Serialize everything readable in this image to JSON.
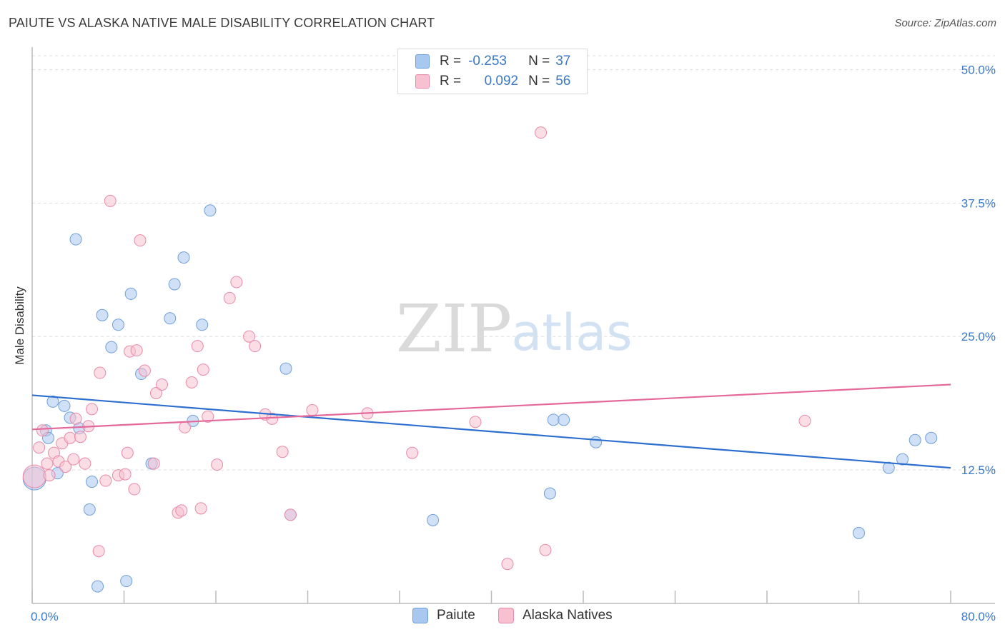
{
  "title": "PAIUTE VS ALASKA NATIVE MALE DISABILITY CORRELATION CHART",
  "source": "Source: ZipAtlas.com",
  "watermark": {
    "zip": "ZIP",
    "atlas": "atlas"
  },
  "legend": {
    "series1": {
      "r_label": "R =",
      "r_value": "-0.253",
      "n_label": "N =",
      "n_value": "37"
    },
    "series2": {
      "r_label": "R =",
      "r_value": "0.092",
      "n_label": "N =",
      "n_value": "56"
    }
  },
  "bottom_legend": {
    "series1": "Paiute",
    "series2": "Alaska Natives"
  },
  "colors": {
    "paiute_fill": "#a9c8f0",
    "paiute_stroke": "#6f9fd8",
    "paiute_line": "#2d6fce",
    "alaska_fill": "#f7c1d2",
    "alaska_stroke": "#e88aa8",
    "alaska_line": "#e4699a",
    "tick_label": "#3a78c8",
    "grid": "#dddddd"
  },
  "chart_data": {
    "type": "scatter",
    "title": "PAIUTE VS ALASKA NATIVE MALE DISABILITY CORRELATION CHART",
    "xlabel": "",
    "ylabel": "Male Disability",
    "xlim": [
      0,
      80
    ],
    "ylim": [
      0,
      51.5
    ],
    "x_tick_labels": [
      {
        "value": 0,
        "label": "0.0%"
      },
      {
        "value": 80,
        "label": "80.0%"
      }
    ],
    "y_tick_labels": [
      {
        "value": 12.5,
        "label": "12.5%"
      },
      {
        "value": 25.0,
        "label": "25.0%"
      },
      {
        "value": 37.5,
        "label": "37.5%"
      },
      {
        "value": 50.0,
        "label": "50.0%"
      }
    ],
    "grid": "horizontal dashed",
    "legend_position": "top-center",
    "series": [
      {
        "name": "Paiute",
        "r": -0.253,
        "n": 37,
        "trend": [
          [
            0,
            19.5
          ],
          [
            80,
            12.7
          ]
        ],
        "points": [
          [
            0.2,
            11.7,
            16
          ],
          [
            1.2,
            16.2,
            8
          ],
          [
            1.4,
            15.5,
            8
          ],
          [
            1.8,
            18.9,
            8
          ],
          [
            2.2,
            12.2,
            8
          ],
          [
            2.8,
            18.5,
            8
          ],
          [
            3.3,
            17.4,
            8
          ],
          [
            3.8,
            34.1,
            8
          ],
          [
            4.1,
            16.4,
            8
          ],
          [
            5.0,
            8.8,
            8
          ],
          [
            5.2,
            11.4,
            8
          ],
          [
            5.7,
            1.6,
            8
          ],
          [
            6.1,
            27.0,
            8
          ],
          [
            6.9,
            24.0,
            8
          ],
          [
            7.5,
            26.1,
            8
          ],
          [
            8.2,
            2.1,
            8
          ],
          [
            8.6,
            29.0,
            8
          ],
          [
            9.5,
            21.5,
            8
          ],
          [
            10.4,
            13.1,
            8
          ],
          [
            12.0,
            26.7,
            8
          ],
          [
            12.4,
            29.9,
            8
          ],
          [
            13.2,
            32.4,
            8
          ],
          [
            14.0,
            17.1,
            8
          ],
          [
            14.8,
            26.1,
            8
          ],
          [
            15.5,
            36.8,
            8
          ],
          [
            22.5,
            8.3,
            8
          ],
          [
            22.1,
            22.0,
            8
          ],
          [
            34.9,
            7.8,
            8
          ],
          [
            45.1,
            10.3,
            8
          ],
          [
            45.4,
            17.2,
            8
          ],
          [
            46.3,
            17.2,
            8
          ],
          [
            49.1,
            15.1,
            8
          ],
          [
            72.0,
            6.6,
            8
          ],
          [
            74.6,
            12.7,
            8
          ],
          [
            75.8,
            13.5,
            8
          ],
          [
            76.9,
            15.3,
            8
          ],
          [
            78.3,
            15.5,
            8
          ]
        ]
      },
      {
        "name": "Alaska Natives",
        "r": 0.092,
        "n": 56,
        "trend": [
          [
            0,
            16.3
          ],
          [
            80,
            20.5
          ]
        ],
        "points": [
          [
            0.2,
            11.9,
            16
          ],
          [
            0.6,
            14.6,
            8
          ],
          [
            0.9,
            16.2,
            8
          ],
          [
            1.3,
            13.1,
            8
          ],
          [
            1.5,
            12.0,
            8
          ],
          [
            1.9,
            14.1,
            8
          ],
          [
            2.3,
            13.3,
            8
          ],
          [
            2.6,
            15.0,
            8
          ],
          [
            2.9,
            12.8,
            8
          ],
          [
            3.3,
            15.5,
            8
          ],
          [
            3.6,
            13.5,
            8
          ],
          [
            3.8,
            17.3,
            8
          ],
          [
            4.2,
            15.6,
            8
          ],
          [
            4.6,
            13.1,
            8
          ],
          [
            4.9,
            16.6,
            8
          ],
          [
            5.2,
            18.2,
            8
          ],
          [
            5.8,
            4.9,
            8
          ],
          [
            5.9,
            21.6,
            8
          ],
          [
            6.4,
            11.5,
            8
          ],
          [
            6.8,
            37.7,
            8
          ],
          [
            7.5,
            12.0,
            8
          ],
          [
            8.1,
            12.1,
            8
          ],
          [
            8.3,
            14.1,
            8
          ],
          [
            8.5,
            23.6,
            8
          ],
          [
            8.9,
            10.7,
            8
          ],
          [
            9.1,
            23.7,
            8
          ],
          [
            9.4,
            34.0,
            8
          ],
          [
            9.8,
            21.8,
            8
          ],
          [
            10.6,
            13.1,
            8
          ],
          [
            10.8,
            19.7,
            8
          ],
          [
            11.3,
            20.5,
            8
          ],
          [
            12.7,
            8.5,
            8
          ],
          [
            13.0,
            8.7,
            8
          ],
          [
            13.3,
            16.5,
            8
          ],
          [
            13.9,
            20.7,
            8
          ],
          [
            14.4,
            24.1,
            8
          ],
          [
            14.7,
            8.9,
            8
          ],
          [
            14.9,
            21.9,
            8
          ],
          [
            15.3,
            17.5,
            8
          ],
          [
            16.1,
            13.0,
            8
          ],
          [
            17.2,
            28.6,
            8
          ],
          [
            17.8,
            30.1,
            8
          ],
          [
            18.9,
            25.0,
            8
          ],
          [
            19.4,
            24.1,
            8
          ],
          [
            20.3,
            17.7,
            8
          ],
          [
            20.9,
            17.3,
            8
          ],
          [
            21.8,
            14.2,
            8
          ],
          [
            22.5,
            8.3,
            8
          ],
          [
            24.4,
            18.1,
            8
          ],
          [
            29.2,
            17.8,
            8
          ],
          [
            33.1,
            14.1,
            8
          ],
          [
            38.6,
            17.0,
            8
          ],
          [
            41.4,
            3.7,
            8
          ],
          [
            44.3,
            44.1,
            8
          ],
          [
            44.7,
            5.0,
            8
          ],
          [
            67.3,
            17.1,
            8
          ]
        ]
      }
    ]
  }
}
